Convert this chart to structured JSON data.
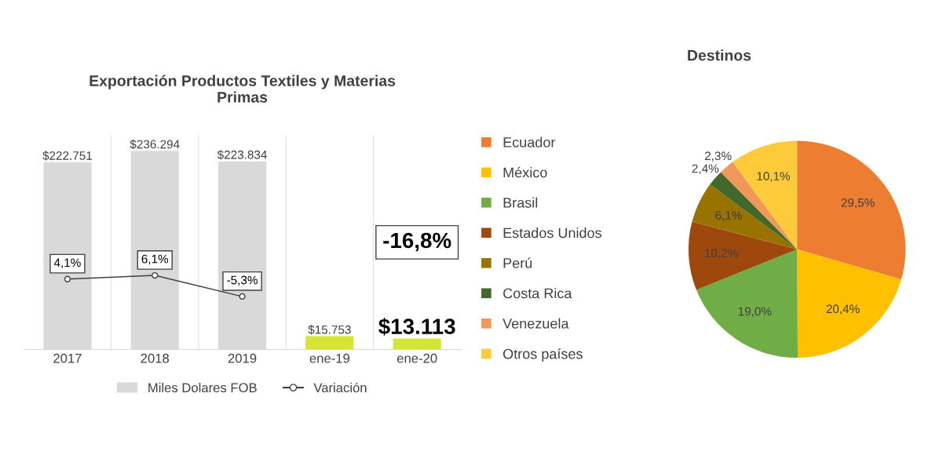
{
  "chart_data": [
    {
      "type": "bar",
      "title": "Exportación Productos Textiles y Materias\nPrimas",
      "categories": [
        "2017",
        "2018",
        "2019",
        "ene-19",
        "ene-20"
      ],
      "ylim": [
        0,
        255000
      ],
      "y2lim": [
        -34,
        82
      ],
      "tick_labels": "x",
      "legend": "bottom",
      "annotations": [
        "-16,8%"
      ],
      "series": [
        {
          "name": "Miles Dolares FOB",
          "type": "bar",
          "color": "#d9d9d9",
          "colors": [
            "#d9d9d9",
            "#d9d9d9",
            "#d9d9d9",
            "#d4e535",
            "#d4e535"
          ],
          "values": [
            222751,
            236294,
            223834,
            15753,
            13113
          ],
          "value_labels": [
            "$222.751",
            "$236.294",
            "$223.834",
            "$15.753",
            "$13.113"
          ]
        },
        {
          "name": "Variación",
          "type": "line",
          "axis": "y2",
          "color": "#404040",
          "marker": "circle",
          "values": [
            4.1,
            6.1,
            -5.3,
            null,
            null
          ],
          "value_labels": [
            "4,1%",
            "6,1%",
            "-5,3%",
            null,
            null
          ]
        }
      ]
    },
    {
      "type": "pie",
      "title": "Destinos",
      "legend": "left",
      "categories": [
        "Ecuador",
        "México",
        "Brasil",
        "Estados Unidos",
        "Perú",
        "Costa Rica",
        "Venezuela",
        "Otros países"
      ],
      "values": [
        29.5,
        20.4,
        19.0,
        10.2,
        6.1,
        2.4,
        2.3,
        10.1
      ],
      "colors": [
        "#ed7d31",
        "#ffc000",
        "#70ad47",
        "#9e480e",
        "#997300",
        "#43682b",
        "#f1975a",
        "#fdcb3a"
      ],
      "value_labels": [
        "29,5%",
        "20,4%",
        "19,0%",
        "10,2%",
        "6,1%",
        "2,4%",
        "2,3%",
        "10,1%"
      ]
    }
  ]
}
